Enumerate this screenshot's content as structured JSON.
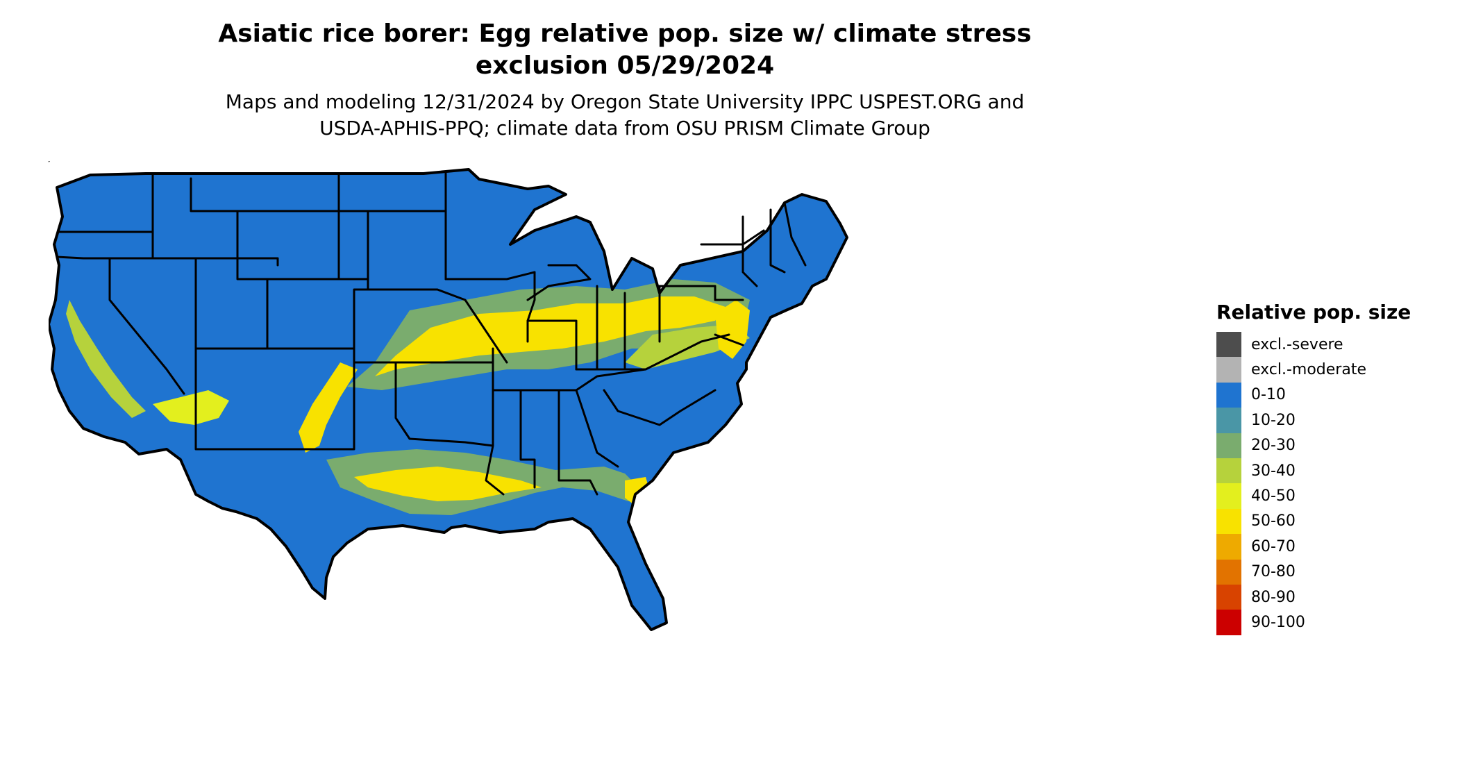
{
  "title": {
    "line1": "Asiatic rice borer: Egg relative pop. size w/ climate stress",
    "line2": "exclusion 05/29/2024"
  },
  "subtitle": {
    "line1": "Maps and modeling 12/31/2024 by Oregon State University IPPC USPEST.ORG and",
    "line2": "USDA-APHIS-PPQ; climate data from OSU PRISM Climate Group"
  },
  "legend": {
    "title": "Relative pop. size",
    "items": [
      {
        "label": "excl.-severe",
        "color": "#4d4d4d"
      },
      {
        "label": "excl.-moderate",
        "color": "#b3b3b3"
      },
      {
        "label": "0-10",
        "color": "#1f74d0"
      },
      {
        "label": "10-20",
        "color": "#4a96a6"
      },
      {
        "label": "20-30",
        "color": "#7aac6e"
      },
      {
        "label": "30-40",
        "color": "#b6d23c"
      },
      {
        "label": "40-50",
        "color": "#e3ef1e"
      },
      {
        "label": "50-60",
        "color": "#f8e200"
      },
      {
        "label": "60-70",
        "color": "#eeaa00"
      },
      {
        "label": "70-80",
        "color": "#e27300"
      },
      {
        "label": "80-90",
        "color": "#d84300"
      },
      {
        "label": "90-100",
        "color": "#cc0000"
      }
    ]
  },
  "map": {
    "region": "conterminous-united-states",
    "base_color": "#1f74d0",
    "border_color": "#000000"
  }
}
